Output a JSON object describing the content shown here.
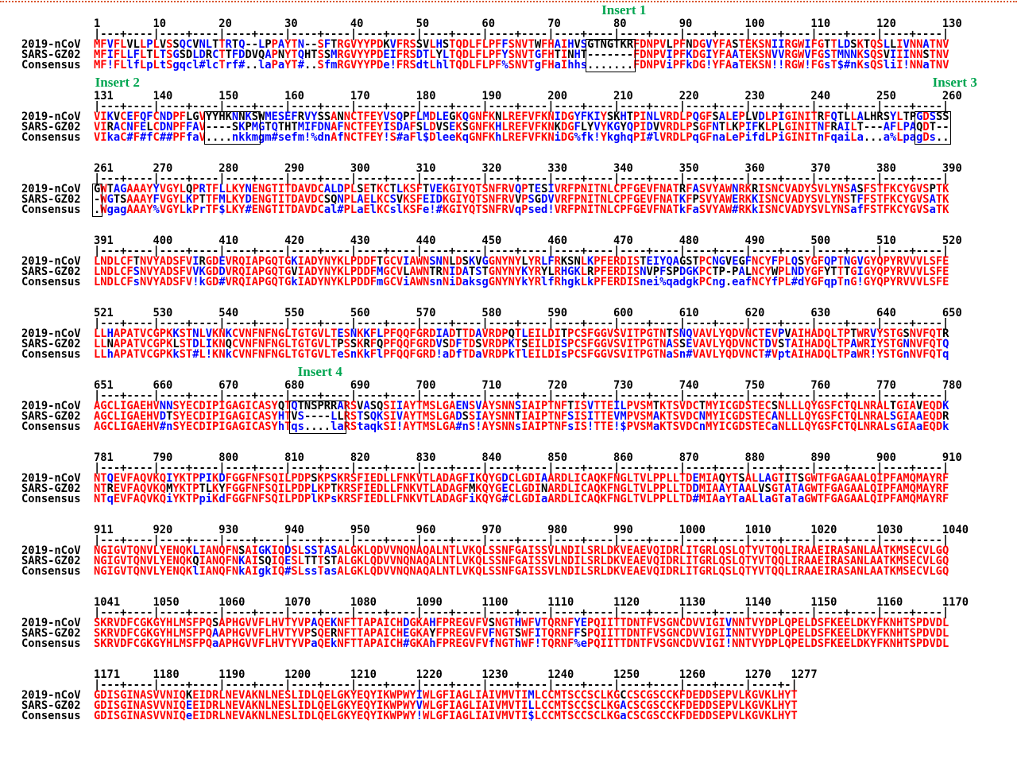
{
  "figure": {
    "type": "multiple-sequence-alignment",
    "top_border_color": "#d9542b",
    "row_labels": [
      "2019-nCoV",
      "SARS-GZ02",
      "Consensus"
    ],
    "block_size": 130,
    "total_columns": 1277,
    "ruler_number_step": 10,
    "sequences": {
      "ncov_blocks": [
        "MFVFLVLLPLVSSQCVNLTTRTQ--LPPAYTN--SFTRGVYYPDKVFRSSVLHSTQDLFLPFFSNVTWFHAIHVSGTNGTKRFDNPVLPFNDGVYFASTEKSNIIRGWIFGTTLDSKTQSLLIVNNATNV",
        "VIKVCEFQFCNDPFLGVYYHKNNKSWMESEFRVYSSANNCTFEYVSQPFLMDLEGKQGNFKNLREFVFKNIDGYFKIYSKHTPINLVRDLPQGFSALEPLVDLPIGINITRFQTLLALHRSYLTPGDSSS",
        "GWTAGAAAYYVGYLQPRTFLLKYNENGTITDAVDCALDPLSETKCTLKSFTVEKGIYQTSNFRVQPTESIVRFPNITNLCPFGEVFNATRFASVYAWNRKRISNCVADYSVLYNSASFSTFKCYGVSPTK",
        "LNDLCFTNVYADSFVIRGDEVRQIAPGQTGKIADYNYKLPDDFTGCVIAWNSNNLDSKVGGNYNYLYRLFRKSNLKPFERDISTEIYQAGSTPCNGVEGFNCYFPLQSYGFQPTNGVGYQPYRVVVLSFE",
        "LLHAPATVCGPKKSTNLVKNKCVNFNFNGLTGTGVLTESNKKFLPFQQFGRDIADTTDAVRDPQTLEILDITPCSFGGVSVITPGTNTSNQVAVLYQDVNCTEVPVAIHADQLTPTWRVYSTGSNVFQTR",
        "AGCLIGAEHVNNSYECDIPIGAGICASYQTQTNSPRRARSVASQSIIAYTMSLGAENSVAYSNNSIAIPTNFTISVTTEILPVSMTKTSVDCTMYICGDSTECSNLLLQYGSFCTQLNRALTGIAVEQDK",
        "NTQEVFAQVKQIYKTPPIKDFGGFNFSQILPDPSKPSKRSFIEDLLFNKVTLADAGFIKQYGDCLGDIAARDLICAQKFNGLTVLPPLLTDEMIAQYTSALLAGTITSGWTFGAGAALQIPFAMQMAYRF",
        "NGIGVTQNVLYENQKLIANQFNSAIGKIQDSLSSTASALGKLQDVVNQNAQALNTLVKQLSSNFGAISSVLNDILSRLDKVEAEVQIDRLITGRLQSLQTYVTQQLIRAAEIRASANLAATKMSECVLGQ",
        "SKRVDFCGKGYHLMSFPQSAPHGVVFLHVTYVPAQEKNFTTAPAICHDGKAHFPREGVFVSNGTHWFVTQRNFYEPQIITTDNTFVSGNCDVVIGIVNNTVYDPLQPELDSFKEELDKYFKNHTSPDVDL",
        "GDISGINASVVNIQKEIDRLNEVAKNLNESLIDLQELGKYEQYIKWPWYIWLGFIAGLIAIVMVTIMLCCMTSCCSCLKGCCSCGSCCKFDEDDSEPVLKGVKLHYT"
      ],
      "sars_blocks": [
        "MFIFLLFLTLTSGSDLDRCTTFDDVQAPNYTQHTSSMRGVYYPDEIFRSDTLYLTQDLFLPFYSNVTGFHTINHT-------FDNPVIPFKDGIYFAATEKSNVVRGWVFGSTMNNKSQSVIIINNSTNV",
        "VIRACNFELCDNPFFAV----SKPMGTQTHTMIFDNAFNCTFEYISDAFSLDVSEKSGNFKHLREFVFKNKDGFLYVYKGYQPIDVVRDLPSGFNTLKPIFKLPLGINITNFRAILT---AFLPAQDT--",
        "-WGTSAAAYFVGYLKPTTFMLKYDENGTITDAVDCSQNPLAELKCSVKSFEIDKGIYQTSNFRVVPSGDVVRFPNITNLCPFGEVFNATKFPSVYAWERKKISNCVADYSVLYNSTFFSTFKCYGVSATK",
        "LNDLCFSNVYADSFVVKGDDVRQIAPGQTGVIADYNYKLPDDFMGCVLAWNTRNIDATSTGNYNYKYRYLRHGKLRPFERDISNVPFSPDGKPCTP-PALNCYWPLNDYGFYTTTGIGYQPYRVVVLSFE",
        "LLNAPATVCGPKLSTDLIKNQCVNFNFNGLTGTGVLTPSSKRFQPFQQFGRDVSDFTDSVRDPKTSEILDISPCSFGGVSVITPGTNASSEVAVLYQDVNCTDVSTAIHADQLTPAWRIYSTGNNVFQTQ",
        "AGCLIGAEHVDTSYECDIPIGAGICASYHTVS----LLRSTSQKSIVAYTMSLGADSSIAYSNNTIAIPTNFSISITTEVMPVSMAKTSVDCNMYICGDSTECANLLLQYGSFCTQLNRALSGIAAEQDR",
        "NTREVFAQVKQMYKTPTLKYFGGFNFSQILPDPLKPTKRSFIEDLLFNKVTLADAGFMKQYGECLGDINARDLICAQKFNGLTVLPPLLTDDMIAAYTAALVSGTATAGWTFGAGAALQIPFAMQMAYRF",
        "NGIGVTQNVLYENQKQIANQFNKAISQIQESLTTTSTALGKLQDVVNQNAQALNTLVKQLSSNFGAISSVLNDILSRLDKVEAEVQIDRLITGRLQSLQTYVTQQLIRAAEIRASANLAATKMSECVLGQ",
        "SKRVDFCGKGYHLMSFPQAAPHGVVFLHVTYVPSQERNFTTAPAICHEGKAYFPREGVFVFNGTSWFITQRNFFSPQIITTDNTFVSGNCDVVIGIINNTVYDPLQPELDSFKEELDKYFKNHTSPDVDL",
        "GDISGINASVVNIQEEIDRLNEVAKNLNESLIDLQELGKYEQYIKWPWYVWLGFIAGLIAIVMVTILLCCMTSCCSCLKGACSCGSCCKFDEDDSEPVLKGVKLHYT"
      ]
    },
    "consensus_legend": "computed per column: identity = UPPERCASE (red); ! = I/V, $ = L/M, % = F/Y, # = N/D/Q/E (blue); lowercase = weak consensus (blue); . = gap/neutral (black)",
    "inserts": [
      {
        "label": "Insert 1",
        "start": 76,
        "end": 82,
        "label_col": 79
      },
      {
        "label": "Insert 2",
        "start": 148,
        "end": 155,
        "label_col": 134
      },
      {
        "label": "Insert 3",
        "start": 256,
        "end": 261,
        "label_col": 258
      },
      {
        "label": "Insert 4",
        "start": 681,
        "end": 688,
        "label_col": 684
      }
    ],
    "colors": {
      "identical": "#ff0000",
      "similar": "#0000ff",
      "neutral": "#000000",
      "insert_label": "#00a550",
      "ruler": "#000000",
      "background": "#ffffff"
    }
  }
}
